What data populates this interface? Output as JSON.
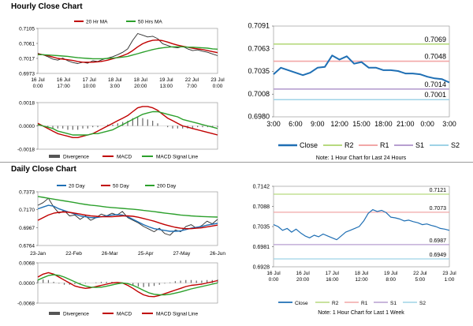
{
  "page": {
    "hourly_title": "Hourly Close Chart",
    "daily_title": "Daily Close Chart"
  },
  "colors": {
    "close": "#2b2b2b",
    "ma_short": "#c00000",
    "ma_long": "#2ca02c",
    "ma_mid": "#1f6fb4",
    "r2": "#b7d97f",
    "r1": "#f2a7a7",
    "s1": "#b79fd0",
    "s2": "#9fd3e6",
    "line_blue": "#1f6fb4",
    "bar": "#666666"
  },
  "chart_data": [
    {
      "id": "hourly-price",
      "type": "line",
      "legend": [
        "20 Hr MA",
        "50 Hrs MA"
      ],
      "yticks": [
        "0.7105",
        "0.7061",
        "0.7017",
        "0.6973"
      ],
      "ylim": [
        0.6973,
        0.7105
      ],
      "xticks": [
        [
          "16 Jul",
          "0:00"
        ],
        [
          "16 Jul",
          "17:00"
        ],
        [
          "17 Jul",
          "10:00"
        ],
        [
          "18 Jul",
          "3:00"
        ],
        [
          "18 Jul",
          "20:00"
        ],
        [
          "19 Jul",
          "13:00"
        ],
        [
          "22 Jul",
          "7:00"
        ],
        [
          "23 Jul",
          "0:00"
        ]
      ],
      "series": [
        {
          "role": "close",
          "values": [
            0.7032,
            0.7028,
            0.7022,
            0.7015,
            0.7012,
            0.7018,
            0.701,
            0.7005,
            0.7002,
            0.7006,
            0.7003,
            0.701,
            0.7008,
            0.7014,
            0.7018,
            0.7022,
            0.7028,
            0.7035,
            0.7045,
            0.707,
            0.709,
            0.7085,
            0.708,
            0.7082,
            0.7075,
            0.706,
            0.7055,
            0.705,
            0.7048,
            0.7052,
            0.7045,
            0.704,
            0.7042,
            0.7038,
            0.7035,
            0.703,
            0.7025
          ]
        },
        {
          "role": "ma_short",
          "values": [
            0.703,
            0.7028,
            0.7025,
            0.7021,
            0.7017,
            0.7015,
            0.7013,
            0.7011,
            0.7008,
            0.7006,
            0.7006,
            0.7006,
            0.7007,
            0.7009,
            0.7012,
            0.7016,
            0.702,
            0.7025,
            0.7031,
            0.704,
            0.7051,
            0.706,
            0.7066,
            0.707,
            0.7071,
            0.7069,
            0.7065,
            0.706,
            0.7056,
            0.7053,
            0.705,
            0.7047,
            0.7045,
            0.7043,
            0.704,
            0.7037,
            0.7034
          ]
        },
        {
          "role": "ma_long",
          "values": [
            0.7028,
            0.7028,
            0.7027,
            0.7026,
            0.7025,
            0.7024,
            0.7023,
            0.7021,
            0.7019,
            0.7018,
            0.7017,
            0.7016,
            0.7016,
            0.7016,
            0.7017,
            0.7018,
            0.7019,
            0.7021,
            0.7023,
            0.7027,
            0.7031,
            0.7035,
            0.7039,
            0.7043,
            0.7046,
            0.7048,
            0.705,
            0.7051,
            0.7051,
            0.7051,
            0.705,
            0.705,
            0.7049,
            0.7048,
            0.7047,
            0.7045,
            0.7044
          ]
        }
      ]
    },
    {
      "id": "hourly-macd",
      "type": "bar",
      "legend": [
        "Divergence",
        "MACD",
        "MACD Signal Line"
      ],
      "yticks": [
        "0.0018",
        "0.0000",
        "-0.0018"
      ],
      "ylim": [
        -0.0018,
        0.0018
      ],
      "series": [
        {
          "role": "divergence",
          "values": [
            0.0001,
            0.0,
            -0.0001,
            -0.0002,
            -0.0002,
            -0.0002,
            -0.0003,
            -0.0003,
            -0.0003,
            -0.0002,
            -0.0002,
            -0.0001,
            -0.0001,
            0.0,
            0.0001,
            0.0001,
            0.0002,
            0.0003,
            0.0004,
            0.0006,
            0.0007,
            0.0006,
            0.0005,
            0.0004,
            0.0002,
            0.0,
            -0.0001,
            -0.0002,
            -0.0002,
            -0.0002,
            -0.0002,
            -0.0002,
            -0.0001,
            -0.0001,
            -0.0001,
            -0.0001,
            -0.0001
          ]
        },
        {
          "role": "macd",
          "values": [
            0.0002,
            0.0,
            -0.0002,
            -0.0004,
            -0.0006,
            -0.0007,
            -0.0008,
            -0.0009,
            -0.0009,
            -0.0008,
            -0.0007,
            -0.0006,
            -0.0004,
            -0.0002,
            0.0,
            0.0002,
            0.0004,
            0.0006,
            0.0008,
            0.0011,
            0.0014,
            0.0015,
            0.0015,
            0.0014,
            0.0012,
            0.0009,
            0.0006,
            0.0004,
            0.0002,
            0.0,
            -0.0001,
            -0.0002,
            -0.0003,
            -0.0004,
            -0.0005,
            -0.0006,
            -0.0007
          ]
        },
        {
          "role": "signal",
          "values": [
            0.0001,
            0.0,
            -0.0001,
            -0.0002,
            -0.0004,
            -0.0005,
            -0.0006,
            -0.0007,
            -0.0007,
            -0.0007,
            -0.0007,
            -0.0006,
            -0.0006,
            -0.0005,
            -0.0004,
            -0.0003,
            -0.0001,
            0.0001,
            0.0003,
            0.0005,
            0.0007,
            0.0009,
            0.001,
            0.0011,
            0.0011,
            0.001,
            0.0009,
            0.0008,
            0.0007,
            0.0005,
            0.0004,
            0.0003,
            0.0002,
            0.0001,
            0.0,
            -0.0001,
            -0.0002
          ]
        }
      ]
    },
    {
      "id": "hourly-pivot",
      "type": "line",
      "yticks": [
        "0.7091",
        "0.7063",
        "0.7035",
        "0.7008",
        "0.6980"
      ],
      "ylim": [
        0.698,
        0.7091
      ],
      "xticks": [
        "3:00",
        "6:00",
        "9:00",
        "12:00",
        "15:00",
        "18:00",
        "21:00",
        "0:00",
        "3:00"
      ],
      "levels": [
        {
          "role": "r2",
          "value": 0.7069,
          "label": "0.7069"
        },
        {
          "role": "r1",
          "value": 0.7048,
          "label": "0.7048"
        },
        {
          "role": "s1",
          "value": 0.7014,
          "label": "0.7014"
        },
        {
          "role": "s2",
          "value": 0.7001,
          "label": "0.7001"
        }
      ],
      "close": [
        0.7032,
        0.704,
        0.7037,
        0.7034,
        0.7031,
        0.7034,
        0.704,
        0.7041,
        0.7055,
        0.705,
        0.7054,
        0.7045,
        0.7047,
        0.704,
        0.704,
        0.7037,
        0.7037,
        0.7036,
        0.7033,
        0.7033,
        0.7032,
        0.7029,
        0.7027,
        0.7026,
        0.7022
      ],
      "legend": [
        "Close",
        "R2",
        "R1",
        "S1",
        "S2"
      ],
      "note": "Note: 1 Hour Chart for Last 24 Hours"
    },
    {
      "id": "daily-price",
      "type": "line",
      "legend": [
        "20 Day",
        "50 Day",
        "200 Day"
      ],
      "yticks": [
        "0.7373",
        "0.7170",
        "0.6967",
        "0.6764"
      ],
      "ylim": [
        0.6764,
        0.7373
      ],
      "xticks": [
        "23-Jan",
        "22-Feb",
        "26-Mar",
        "25-Apr",
        "27-May",
        "26-Jun"
      ],
      "series": [
        {
          "role": "close",
          "values": [
            0.722,
            0.725,
            0.73,
            0.72,
            0.713,
            0.716,
            0.71,
            0.711,
            0.706,
            0.71,
            0.705,
            0.708,
            0.712,
            0.71,
            0.713,
            0.711,
            0.715,
            0.708,
            0.705,
            0.702,
            0.698,
            0.695,
            0.692,
            0.696,
            0.69,
            0.688,
            0.694,
            0.692,
            0.698,
            0.7,
            0.696,
            0.699,
            0.704,
            0.701,
            0.706
          ]
        },
        {
          "role": "ma_mid",
          "values": [
            0.718,
            0.72,
            0.722,
            0.721,
            0.718,
            0.716,
            0.714,
            0.712,
            0.71,
            0.709,
            0.708,
            0.708,
            0.709,
            0.71,
            0.711,
            0.7115,
            0.711,
            0.709,
            0.706,
            0.703,
            0.7,
            0.6975,
            0.6955,
            0.6945,
            0.6935,
            0.6925,
            0.6925,
            0.693,
            0.6945,
            0.696,
            0.697,
            0.698,
            0.6995,
            0.7005,
            0.7015
          ]
        },
        {
          "role": "ma_short",
          "values": [
            0.705,
            0.708,
            0.711,
            0.713,
            0.714,
            0.7145,
            0.714,
            0.713,
            0.712,
            0.711,
            0.71,
            0.7095,
            0.709,
            0.709,
            0.709,
            0.7095,
            0.71,
            0.71,
            0.7095,
            0.7085,
            0.707,
            0.7055,
            0.704,
            0.702,
            0.7,
            0.6985,
            0.697,
            0.696,
            0.6955,
            0.6955,
            0.696,
            0.6965,
            0.6975,
            0.6985,
            0.6995
          ]
        },
        {
          "role": "ma_long",
          "values": [
            0.732,
            0.731,
            0.73,
            0.729,
            0.728,
            0.727,
            0.726,
            0.725,
            0.724,
            0.723,
            0.7222,
            0.7215,
            0.7208,
            0.72,
            0.7195,
            0.719,
            0.7185,
            0.718,
            0.7175,
            0.717,
            0.7162,
            0.7155,
            0.7148,
            0.714,
            0.7132,
            0.7125,
            0.7118,
            0.711,
            0.7105,
            0.71,
            0.7096,
            0.7093,
            0.709,
            0.7088,
            0.7086
          ]
        }
      ]
    },
    {
      "id": "daily-macd",
      "type": "bar",
      "legend": [
        "Divergence",
        "MACD",
        "MACD Signal Line"
      ],
      "yticks": [
        "0.0068",
        "0.0000",
        "-0.0068"
      ],
      "ylim": [
        -0.0068,
        0.0068
      ],
      "series": [
        {
          "role": "divergence",
          "values": [
            0.001,
            0.0012,
            0.001,
            0.0004,
            -0.0002,
            -0.0006,
            -0.0006,
            -0.0004,
            -0.0004,
            -0.0002,
            0.0,
            0.0002,
            0.0004,
            0.0004,
            0.0004,
            0.0002,
            0.0,
            -0.0004,
            -0.0008,
            -0.0012,
            -0.0014,
            -0.0012,
            -0.001,
            -0.0006,
            -0.0002,
            0.0002,
            0.0006,
            0.0008,
            0.001,
            0.001,
            0.0008,
            0.0008,
            0.001,
            0.001,
            0.0012
          ]
        },
        {
          "role": "macd",
          "values": [
            0.002,
            0.003,
            0.0035,
            0.003,
            0.002,
            0.001,
            0.0,
            -0.001,
            -0.0015,
            -0.0018,
            -0.0016,
            -0.0012,
            -0.0008,
            -0.0004,
            0.0,
            0.0002,
            0.0,
            -0.0008,
            -0.0018,
            -0.003,
            -0.004,
            -0.0045,
            -0.0046,
            -0.0042,
            -0.0036,
            -0.003,
            -0.0024,
            -0.0018,
            -0.0012,
            -0.0008,
            -0.0006,
            -0.0004,
            0.0,
            0.0004,
            0.0008
          ]
        },
        {
          "role": "signal",
          "values": [
            0.001,
            0.0018,
            0.0025,
            0.0028,
            0.0026,
            0.002,
            0.0012,
            0.0004,
            -0.0004,
            -0.001,
            -0.0014,
            -0.0015,
            -0.0014,
            -0.0011,
            -0.0007,
            -0.0003,
            0.0,
            -0.0002,
            -0.0008,
            -0.0016,
            -0.0025,
            -0.0033,
            -0.0038,
            -0.004,
            -0.004,
            -0.0038,
            -0.0034,
            -0.003,
            -0.0025,
            -0.002,
            -0.0016,
            -0.0012,
            -0.0008,
            -0.0004,
            0.0
          ]
        }
      ]
    },
    {
      "id": "daily-pivot",
      "type": "line",
      "yticks": [
        "0.7142",
        "0.7088",
        "0.7035",
        "0.6981",
        "0.6928"
      ],
      "ylim": [
        0.6928,
        0.7142
      ],
      "xticks": [
        [
          "16 Jul",
          "0:00"
        ],
        [
          "16 Jul",
          "20:00"
        ],
        [
          "17 Jul",
          "16:00"
        ],
        [
          "18 Jul",
          "12:00"
        ],
        [
          "19 Jul",
          "8:00"
        ],
        [
          "22 Jul",
          "5:00"
        ],
        [
          "23 Jul",
          "1:00"
        ]
      ],
      "levels": [
        {
          "role": "r2",
          "value": 0.7121,
          "label": "0.7121"
        },
        {
          "role": "r1",
          "value": 0.7073,
          "label": "0.7073"
        },
        {
          "role": "s1",
          "value": 0.6987,
          "label": "0.6987"
        },
        {
          "role": "s2",
          "value": 0.6949,
          "label": "0.6949"
        }
      ],
      "close": [
        0.704,
        0.7035,
        0.7025,
        0.703,
        0.702,
        0.7028,
        0.7018,
        0.701,
        0.7005,
        0.7012,
        0.7008,
        0.7015,
        0.701,
        0.7005,
        0.7,
        0.701,
        0.702,
        0.7025,
        0.703,
        0.7035,
        0.705,
        0.707,
        0.708,
        0.7075,
        0.7078,
        0.7072,
        0.706,
        0.7058,
        0.7055,
        0.705,
        0.7052,
        0.7048,
        0.7045,
        0.704,
        0.7042,
        0.7038,
        0.7035,
        0.703,
        0.7028,
        0.7025
      ],
      "legend": [
        "Close",
        "R2",
        "R1",
        "S1",
        "S2"
      ],
      "note": "Note: 1 Hour Chart for Last 1 Week"
    }
  ]
}
